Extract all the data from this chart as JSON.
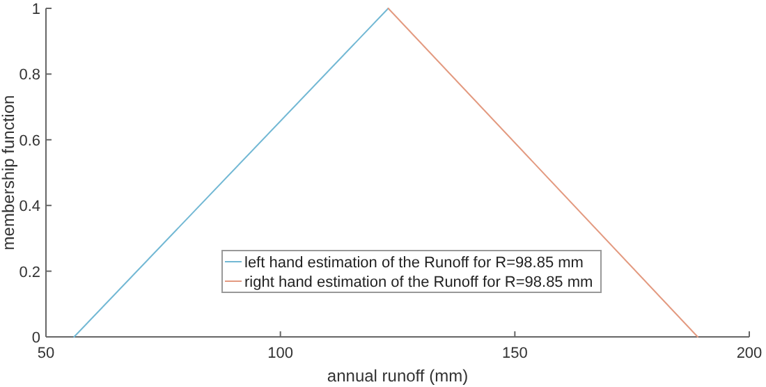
{
  "chart_data": {
    "type": "line",
    "xlabel": "annual runoff (mm)",
    "ylabel": "membership function",
    "series": [
      {
        "name": "left hand estimation of the Runoff for R=98.85 mm",
        "color": "#72b8d4",
        "x": [
          56,
          123
        ],
        "values": [
          0,
          1
        ]
      },
      {
        "name": "right hand estimation of the Runoff for R=98.85 mm",
        "color": "#e39a80",
        "x": [
          123,
          189
        ],
        "values": [
          1,
          0
        ]
      }
    ],
    "xlim": [
      50,
      200
    ],
    "xticks": [
      50,
      100,
      150,
      200
    ],
    "ylim": [
      0,
      1
    ],
    "yticks": [
      0,
      0.2,
      0.4,
      0.6,
      0.8,
      1
    ],
    "grid": false,
    "legend": "bottom",
    "marker": "none",
    "line_style": "solid"
  }
}
